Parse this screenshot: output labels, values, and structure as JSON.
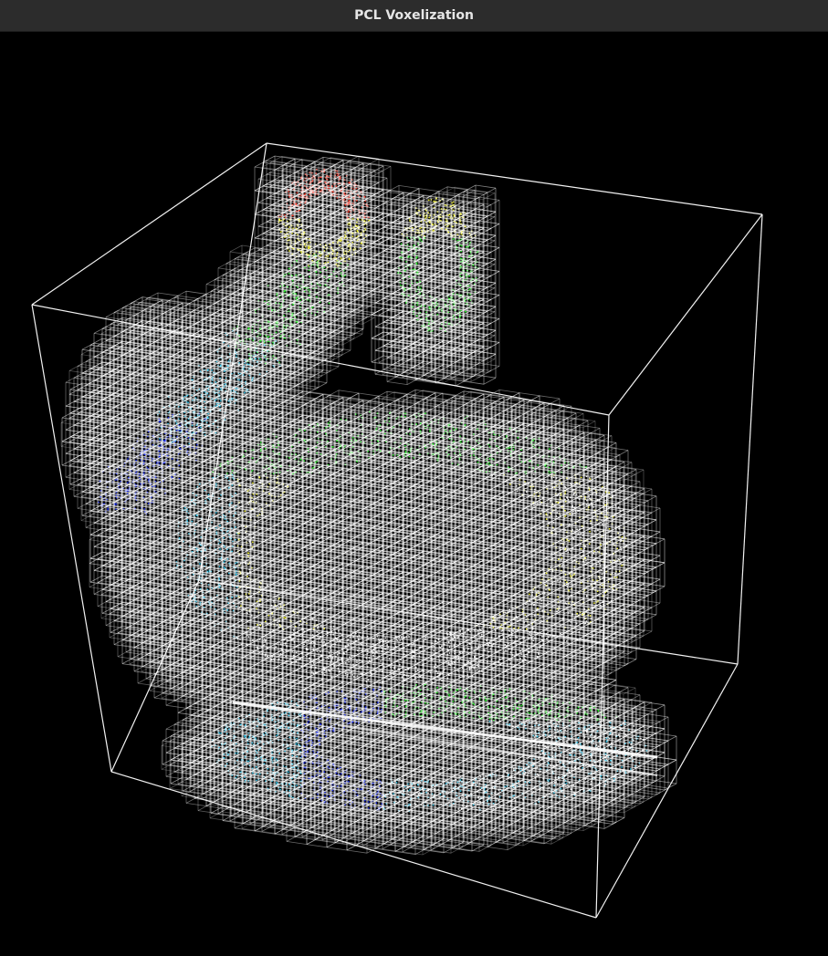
{
  "window": {
    "title": "PCL Voxelization"
  },
  "viewer": {
    "background": "#000000",
    "bounding_box_color": "#ffffff",
    "voxel_color": "#ffffff",
    "point_colormap": [
      "#1a2cff",
      "#35d6ff",
      "#ffffff",
      "#2cff2c",
      "#ffff33",
      "#ff3a2a"
    ]
  }
}
